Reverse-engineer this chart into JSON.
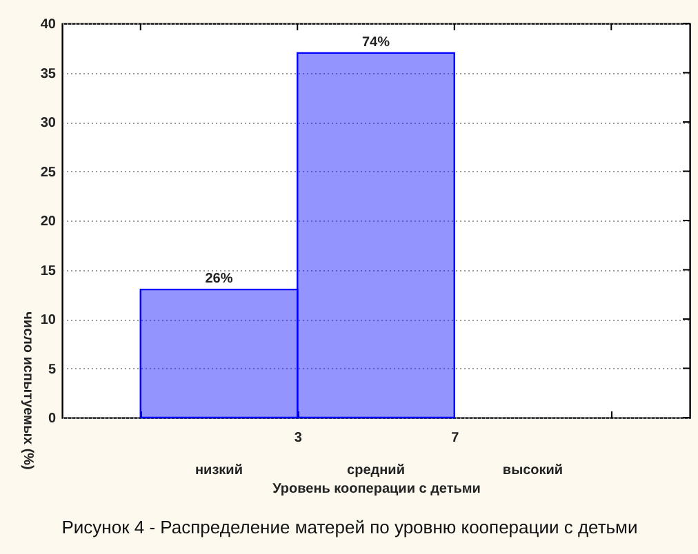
{
  "chart_data": {
    "type": "histogram",
    "title": "Рисунок 4 - Распределение матерей по уровню кооперации с детьми",
    "xlabel": "Уровень кооперации с детьми",
    "ylabel": "число испытуемых (%)",
    "categories": [
      "низкий",
      "средний",
      "высокий"
    ],
    "bins": [
      -1,
      3,
      7,
      11
    ],
    "values": [
      13,
      37,
      null
    ],
    "color": "#0000ff",
    "annotations": [
      {
        "text": "26%",
        "x": 1,
        "y": 13
      },
      {
        "text": "74%",
        "x": 5,
        "y": 37
      }
    ],
    "xlim": [
      -3,
      13
    ],
    "xticks": [
      {
        "value": -1,
        "label": null
      },
      3,
      7,
      {
        "value": 11,
        "label": null
      }
    ],
    "ylim": [
      0,
      40
    ],
    "yticks": [
      0,
      5,
      10,
      15,
      20,
      25,
      30,
      35,
      40
    ],
    "grid": "y"
  }
}
